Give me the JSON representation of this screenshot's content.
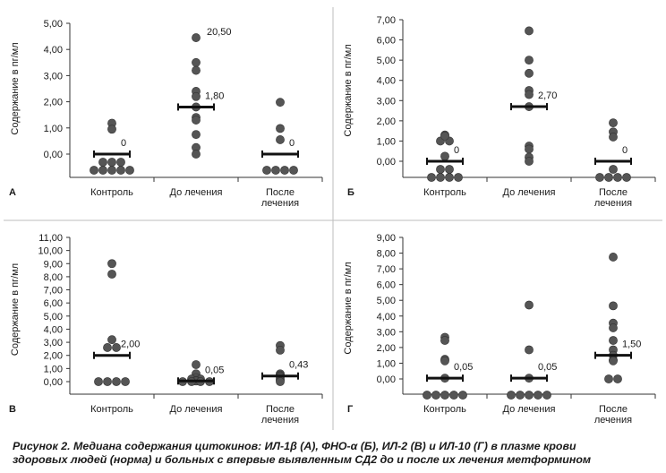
{
  "caption": {
    "line1": "Рисунок 2. Медиана содержания цитокинов: ИЛ-1β (А), ФНО-α (Б), ИЛ-2 (В) и ИЛ-10 (Г) в плазме крови",
    "line2": "здоровых людей (норма) и больных с впервые выявленным СД2 до и после их лечения метформином"
  },
  "colors": {
    "point": "#555555",
    "median": "#111111",
    "border": "#bdbdbd"
  },
  "chart_data": [
    {
      "type": "scatter",
      "panel": "А",
      "ylabel": "Содержание в пг/мл",
      "ylim": [
        0,
        5
      ],
      "yticks": [
        "0,00",
        "1,00",
        "2,00",
        "3,00",
        "4,00",
        "5,00"
      ],
      "categories": [
        "Контроль",
        "До лечения",
        "После лечения"
      ],
      "medians": [
        0,
        1.8,
        0
      ],
      "median_labels": [
        "0",
        "1,80",
        "0"
      ],
      "max_label": "20,50",
      "groups": [
        [
          1.18,
          0.95,
          -0.28,
          -0.28,
          -0.28,
          -0.55,
          -0.55,
          -0.55,
          -0.55,
          -0.55
        ],
        [
          4.45,
          3.5,
          3.2,
          2.4,
          2.2,
          1.8,
          1.4,
          1.3,
          0.75,
          0.25,
          0.0
        ],
        [
          1.98,
          0.98,
          0.55,
          -0.55,
          -0.55,
          -0.55,
          -0.55
        ]
      ]
    },
    {
      "type": "scatter",
      "panel": "Б",
      "ylabel": "Содержание в пг/мл",
      "ylim": [
        0,
        7
      ],
      "yticks": [
        "0,00",
        "1,00",
        "2,00",
        "3,00",
        "4,00",
        "5,00",
        "6,00",
        "7,00"
      ],
      "categories": [
        "Контроль",
        "До лечения",
        "После лечения"
      ],
      "medians": [
        0,
        2.7,
        0
      ],
      "median_labels": [
        "0",
        "2,70",
        "0"
      ],
      "groups": [
        [
          1.3,
          1.0,
          1.0,
          1.25,
          0.25,
          -0.2,
          -0.2,
          -0.6,
          -0.6,
          -0.6,
          -0.6
        ],
        [
          6.45,
          5.0,
          4.35,
          3.5,
          3.3,
          2.7,
          0.75,
          0.6,
          0.2,
          0.0
        ],
        [
          1.9,
          1.45,
          1.2,
          -0.2,
          -0.6,
          -0.6,
          -0.6,
          -0.6
        ]
      ]
    },
    {
      "type": "scatter",
      "panel": "В",
      "ylabel": "Содержание в пг/мл",
      "ylim": [
        0,
        11
      ],
      "yticks": [
        "0,00",
        "1,00",
        "2,00",
        "3,00",
        "4,00",
        "5,00",
        "6,00",
        "7,00",
        "8,00",
        "9,00",
        "10,00",
        "11,00"
      ],
      "categories": [
        "Контроль",
        "До лечения",
        "После лечения"
      ],
      "medians": [
        2.0,
        0.05,
        0.43
      ],
      "median_labels": [
        "2,00",
        "0,05",
        "0,43"
      ],
      "groups": [
        [
          9.0,
          8.2,
          3.2,
          2.6,
          2.6,
          0.0,
          0.0,
          0.0,
          0.0
        ],
        [
          1.3,
          0.6,
          0.3,
          0.2,
          0.2,
          0.1,
          0.05,
          0.0,
          0.0,
          0.0,
          0.0
        ],
        [
          2.75,
          2.4,
          0.6,
          0.5,
          0.43,
          0.35,
          0.2,
          0.1,
          0.0
        ]
      ]
    },
    {
      "type": "scatter",
      "panel": "Г",
      "ylabel": "Содержание в пг/мл",
      "ylim": [
        0,
        9
      ],
      "yticks": [
        "0,00",
        "1,00",
        "2,00",
        "3,00",
        "4,00",
        "5,00",
        "6,00",
        "7,00",
        "8,00",
        "9,00"
      ],
      "categories": [
        "Контроль",
        "До лечения",
        "После лечения"
      ],
      "medians": [
        0.05,
        0.05,
        1.5
      ],
      "median_labels": [
        "0,05",
        "0,05",
        "1,50"
      ],
      "groups": [
        [
          2.65,
          2.45,
          1.25,
          1.15,
          0.05,
          -0.5,
          -0.5,
          -0.5,
          -0.5,
          -0.5
        ],
        [
          4.7,
          1.85,
          0.05,
          -0.5,
          -0.5,
          -0.5,
          -0.5,
          -0.5
        ],
        [
          7.75,
          4.65,
          3.55,
          3.25,
          2.45,
          1.85,
          1.5,
          1.2,
          1.15,
          0.0,
          0.0
        ]
      ]
    }
  ]
}
